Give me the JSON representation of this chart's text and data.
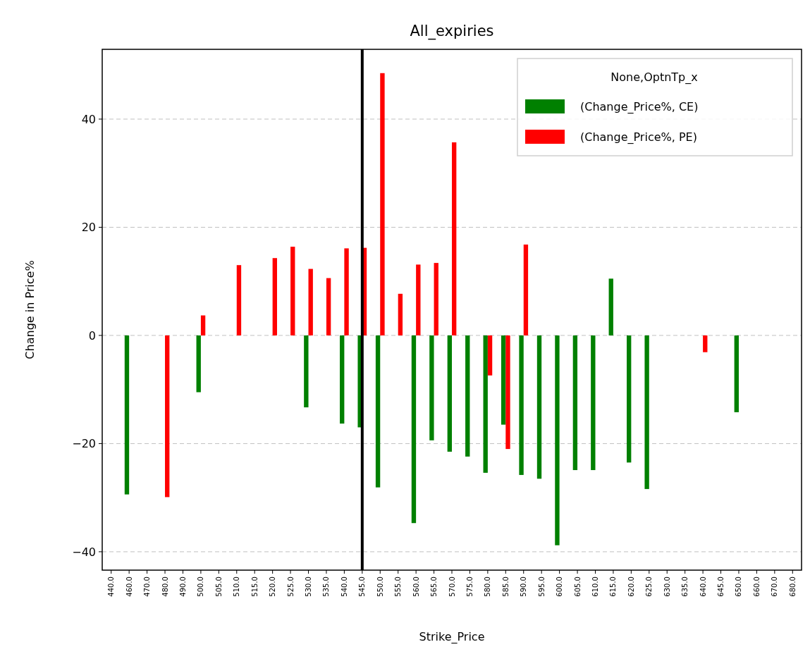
{
  "chart_data": {
    "type": "bar",
    "title": "All_expiries",
    "xlabel": "Strike_Price",
    "ylabel": "Change in Price%",
    "legend_title": "None,OptnTp_x",
    "categories": [
      "440.0",
      "460.0",
      "470.0",
      "480.0",
      "490.0",
      "500.0",
      "505.0",
      "510.0",
      "515.0",
      "520.0",
      "525.0",
      "530.0",
      "535.0",
      "540.0",
      "545.0",
      "550.0",
      "555.0",
      "560.0",
      "565.0",
      "570.0",
      "575.0",
      "580.0",
      "585.0",
      "590.0",
      "595.0",
      "600.0",
      "605.0",
      "610.0",
      "615.0",
      "620.0",
      "625.0",
      "630.0",
      "635.0",
      "640.0",
      "645.0",
      "650.0",
      "660.0",
      "670.0",
      "680.0"
    ],
    "series": [
      {
        "name": "(Change_Price%, CE)",
        "color": "#008000",
        "values": [
          null,
          -29.4,
          null,
          null,
          null,
          -10.5,
          null,
          null,
          null,
          null,
          null,
          -13.3,
          null,
          -16.3,
          -17.0,
          -28.1,
          null,
          -34.7,
          -19.4,
          -21.5,
          -22.4,
          -25.4,
          -16.5,
          -25.8,
          -26.5,
          -38.8,
          -24.9,
          -24.9,
          10.5,
          -23.5,
          -28.4,
          null,
          null,
          null,
          null,
          -14.2,
          null,
          null,
          null
        ]
      },
      {
        "name": "(Change_Price%, PE)",
        "color": "#ff0000",
        "values": [
          null,
          null,
          null,
          -29.9,
          null,
          3.7,
          null,
          13.0,
          null,
          14.3,
          16.4,
          12.3,
          10.6,
          16.1,
          16.2,
          48.5,
          7.7,
          13.1,
          13.4,
          35.7,
          null,
          -7.4,
          -21.0,
          16.8,
          null,
          null,
          null,
          null,
          null,
          null,
          null,
          null,
          null,
          -3.1,
          null,
          null,
          null,
          null,
          null
        ]
      }
    ],
    "ylim": [
      -43.4,
      52.9
    ],
    "yticks": [
      {
        "value": -40,
        "label": "−40"
      },
      {
        "value": -20,
        "label": "−20"
      },
      0,
      20,
      40
    ],
    "grid": "y",
    "legend": "top right",
    "ref_lines": [
      {
        "axis": "x",
        "value": "545.0",
        "color": "#000000"
      }
    ]
  }
}
